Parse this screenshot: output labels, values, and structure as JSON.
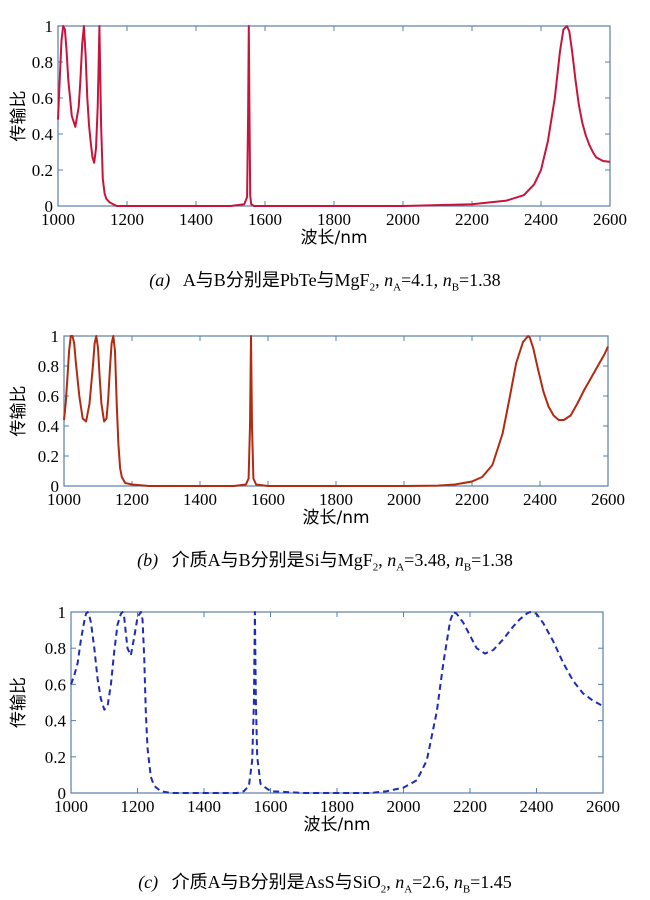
{
  "chart_data": [
    {
      "type": "line",
      "panel_id": "a",
      "ylabel": "传输比",
      "xlabel": "波长/nm",
      "xlim": [
        1000,
        2600
      ],
      "ylim": [
        0,
        1
      ],
      "xticks": [
        "1000",
        "1200",
        "1400",
        "1600",
        "1800",
        "2000",
        "2200",
        "2400",
        "2600"
      ],
      "yticks": [
        "0",
        "0.2",
        "0.4",
        "0.6",
        "0.8",
        "1"
      ],
      "line_style": "solid",
      "colors": {
        "line": "#c8143c",
        "frame": "#5a7fa8"
      },
      "series": [
        {
          "x": [
            1000,
            1005,
            1010,
            1015,
            1020,
            1025,
            1030,
            1040,
            1050,
            1060,
            1065,
            1070,
            1075,
            1080,
            1085,
            1090,
            1095,
            1100,
            1105,
            1110,
            1115,
            1118,
            1120,
            1122,
            1125,
            1130,
            1135,
            1140,
            1150,
            1160,
            1170,
            1200,
            1300,
            1400,
            1500,
            1540,
            1548,
            1551,
            1553,
            1555,
            1557,
            1560,
            1568,
            1600,
            1800,
            2000,
            2200,
            2300,
            2350,
            2380,
            2400,
            2420,
            2440,
            2455,
            2465,
            2475,
            2482,
            2490,
            2500,
            2510,
            2520,
            2530,
            2540,
            2550,
            2560,
            2580,
            2600
          ],
          "y": [
            0.48,
            0.7,
            0.92,
            1.0,
            0.98,
            0.86,
            0.7,
            0.5,
            0.44,
            0.55,
            0.7,
            0.9,
            1.0,
            0.84,
            0.6,
            0.45,
            0.35,
            0.27,
            0.24,
            0.32,
            0.55,
            0.8,
            1.0,
            0.78,
            0.45,
            0.15,
            0.07,
            0.04,
            0.02,
            0.01,
            0.0,
            0.0,
            0.0,
            0.0,
            0.0,
            0.01,
            0.05,
            0.5,
            1.0,
            0.5,
            0.06,
            0.01,
            0.0,
            0.0,
            0.0,
            0.0,
            0.01,
            0.03,
            0.06,
            0.12,
            0.2,
            0.36,
            0.6,
            0.86,
            0.98,
            1.0,
            0.97,
            0.86,
            0.7,
            0.56,
            0.46,
            0.39,
            0.34,
            0.3,
            0.27,
            0.25,
            0.245
          ]
        }
      ]
    },
    {
      "type": "line",
      "panel_id": "b",
      "ylabel": "传输比",
      "xlabel": "波长/nm",
      "xlim": [
        1000,
        2600
      ],
      "ylim": [
        0,
        1
      ],
      "xticks": [
        "1000",
        "1200",
        "1400",
        "1600",
        "1800",
        "2000",
        "2200",
        "2400",
        "2600"
      ],
      "yticks": [
        "0",
        "0.2",
        "0.4",
        "0.6",
        "0.8",
        "1"
      ],
      "line_style": "solid",
      "colors": {
        "line": "#b22a10",
        "frame": "#5a7fa8"
      },
      "series": [
        {
          "x": [
            1000,
            1005,
            1010,
            1015,
            1020,
            1025,
            1030,
            1035,
            1045,
            1055,
            1065,
            1075,
            1085,
            1090,
            1095,
            1100,
            1105,
            1110,
            1118,
            1125,
            1130,
            1135,
            1140,
            1145,
            1150,
            1155,
            1160,
            1165,
            1170,
            1180,
            1200,
            1250,
            1400,
            1500,
            1535,
            1543,
            1547,
            1550,
            1553,
            1557,
            1565,
            1600,
            1800,
            2000,
            2100,
            2150,
            2200,
            2230,
            2260,
            2290,
            2310,
            2330,
            2350,
            2365,
            2370,
            2380,
            2395,
            2410,
            2425,
            2440,
            2455,
            2470,
            2490,
            2510,
            2530,
            2550,
            2570,
            2590,
            2600
          ],
          "y": [
            0.44,
            0.55,
            0.72,
            0.9,
            1.0,
            1.0,
            0.95,
            0.82,
            0.6,
            0.45,
            0.43,
            0.55,
            0.8,
            0.95,
            1.0,
            0.92,
            0.72,
            0.55,
            0.43,
            0.45,
            0.58,
            0.78,
            0.95,
            1.0,
            0.9,
            0.55,
            0.28,
            0.12,
            0.06,
            0.02,
            0.01,
            0.0,
            0.0,
            0.0,
            0.01,
            0.05,
            0.4,
            1.0,
            0.4,
            0.05,
            0.01,
            0.0,
            0.0,
            0.0,
            0.003,
            0.01,
            0.03,
            0.06,
            0.14,
            0.35,
            0.58,
            0.82,
            0.96,
            1.0,
            0.99,
            0.92,
            0.77,
            0.63,
            0.53,
            0.47,
            0.44,
            0.44,
            0.47,
            0.55,
            0.64,
            0.72,
            0.8,
            0.88,
            0.93
          ]
        }
      ]
    },
    {
      "type": "line",
      "panel_id": "c",
      "ylabel": "传输比",
      "xlabel": "波长/nm",
      "xlim": [
        1000,
        2600
      ],
      "ylim": [
        0,
        1
      ],
      "xticks": [
        "1000",
        "1200",
        "1400",
        "1600",
        "1800",
        "2000",
        "2200",
        "2400",
        "2600"
      ],
      "yticks": [
        "0",
        "0.2",
        "0.4",
        "0.6",
        "0.8",
        "1"
      ],
      "line_style": "dashed",
      "colors": {
        "line": "#1f2bb4",
        "frame": "#5a7fa8"
      },
      "series": [
        {
          "x": [
            1000,
            1010,
            1020,
            1030,
            1040,
            1045,
            1050,
            1055,
            1060,
            1070,
            1080,
            1090,
            1100,
            1110,
            1120,
            1130,
            1140,
            1150,
            1155,
            1160,
            1165,
            1170,
            1180,
            1190,
            1200,
            1210,
            1215,
            1220,
            1225,
            1230,
            1240,
            1250,
            1270,
            1300,
            1400,
            1500,
            1520,
            1535,
            1545,
            1550,
            1553,
            1556,
            1560,
            1570,
            1600,
            1700,
            1800,
            1900,
            1950,
            2000,
            2040,
            2070,
            2100,
            2120,
            2140,
            2150,
            2160,
            2180,
            2200,
            2220,
            2245,
            2270,
            2300,
            2330,
            2350,
            2370,
            2380,
            2400,
            2420,
            2450,
            2480,
            2510,
            2540,
            2570,
            2600
          ],
          "y": [
            0.6,
            0.65,
            0.72,
            0.85,
            0.95,
            0.99,
            1.0,
            0.98,
            0.94,
            0.8,
            0.63,
            0.52,
            0.46,
            0.48,
            0.6,
            0.78,
            0.93,
            0.99,
            1.0,
            0.97,
            0.88,
            0.8,
            0.76,
            0.86,
            0.97,
            1.0,
            0.96,
            0.75,
            0.45,
            0.25,
            0.09,
            0.04,
            0.01,
            0.0,
            0.0,
            0.0,
            0.01,
            0.04,
            0.18,
            0.5,
            1.0,
            0.5,
            0.2,
            0.05,
            0.01,
            0.0,
            0.0,
            0.0,
            0.01,
            0.03,
            0.07,
            0.18,
            0.45,
            0.72,
            0.95,
            1.0,
            0.99,
            0.94,
            0.87,
            0.8,
            0.77,
            0.79,
            0.85,
            0.92,
            0.96,
            0.99,
            1.0,
            0.99,
            0.94,
            0.84,
            0.72,
            0.62,
            0.55,
            0.51,
            0.48
          ]
        }
      ]
    }
  ],
  "captions": [
    {
      "label": "(a)",
      "text_before": "A与B分别是PbTe与MgF",
      "sub1": "2",
      "comma": ",",
      "na_var": "n",
      "na_sub": "A",
      "na_val": "=4.1,",
      "nb_var": "n",
      "nb_sub": "B",
      "nb_val": "=1.38"
    },
    {
      "label": "(b)",
      "text_before": "介质A与B分别是Si与MgF",
      "sub1": "2",
      "comma": ",",
      "na_var": "n",
      "na_sub": "A",
      "na_val": "=3.48,",
      "nb_var": "n",
      "nb_sub": "B",
      "nb_val": "=1.38"
    },
    {
      "label": "(c)",
      "text_before": "介质A与B分别是AsS与SiO",
      "sub1": "2",
      "comma": ",",
      "na_var": "n",
      "na_sub": "A",
      "na_val": "=2.6,",
      "nb_var": "n",
      "nb_sub": "B",
      "nb_val": "=1.45"
    }
  ]
}
